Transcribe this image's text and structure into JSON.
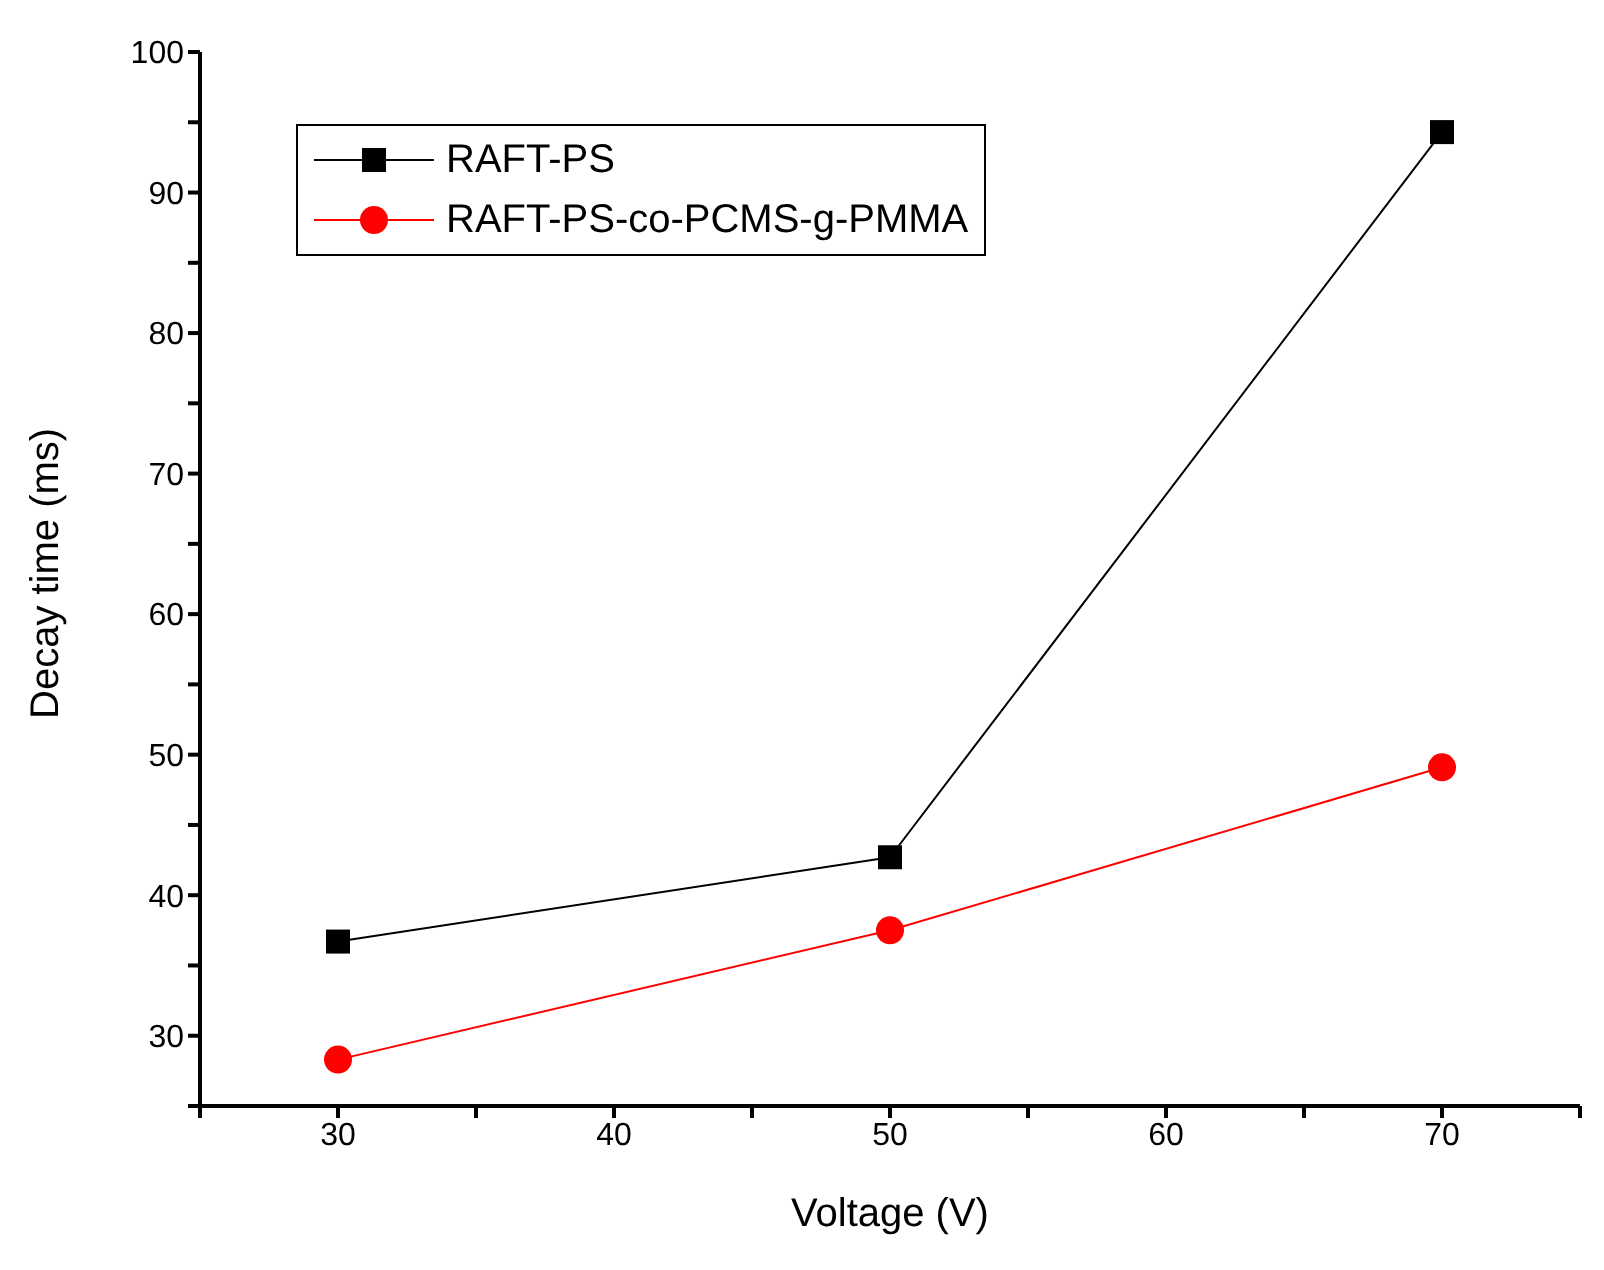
{
  "chart_data": {
    "type": "line",
    "xlabel": "Voltage (V)",
    "ylabel": "Decay time (ms)",
    "x": [
      30,
      50,
      70
    ],
    "series": [
      {
        "name": "RAFT-PS",
        "color": "#000000",
        "marker": "square",
        "values": [
          36.7,
          42.7,
          94.3
        ]
      },
      {
        "name": "RAFT-PS-co-PCMS-g-PMMA",
        "color": "#ff0000",
        "marker": "circle",
        "values": [
          28.3,
          37.5,
          49.1
        ]
      }
    ],
    "xlim": [
      25,
      75
    ],
    "xticks": [
      {
        "value": 25,
        "label": null
      },
      30,
      {
        "value": 35,
        "label": null
      },
      40,
      {
        "value": 45,
        "label": null
      },
      50,
      {
        "value": 55,
        "label": null
      },
      60,
      {
        "value": 65,
        "label": null
      },
      70,
      {
        "value": 75,
        "label": null
      }
    ],
    "ylim": [
      25,
      100
    ],
    "yticks": [
      {
        "value": 25,
        "label": null
      },
      30,
      {
        "value": 35,
        "label": null
      },
      40,
      {
        "value": 45,
        "label": null
      },
      50,
      {
        "value": 55,
        "label": null
      },
      60,
      {
        "value": 65,
        "label": null
      },
      70,
      {
        "value": 75,
        "label": null
      },
      80,
      {
        "value": 85,
        "label": null
      },
      90,
      {
        "value": 95,
        "label": null
      },
      100
    ],
    "grid": false,
    "legend": "top left",
    "line_style": "solid"
  }
}
